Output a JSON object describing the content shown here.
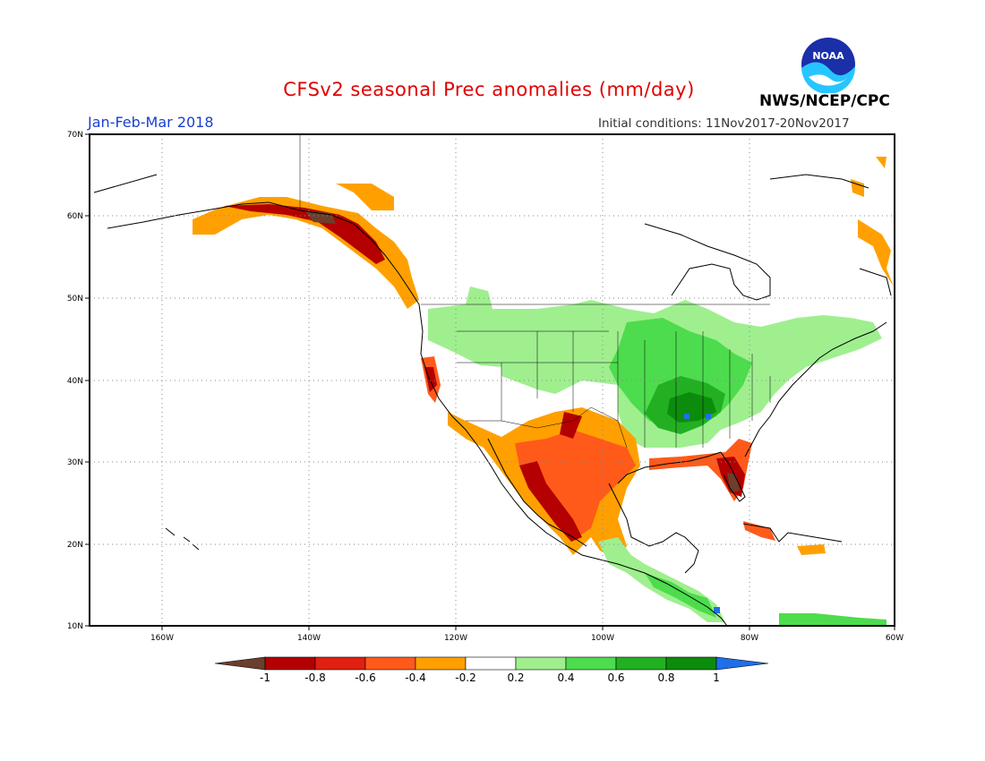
{
  "header": {
    "title": "CFSv2 seasonal Prec anomalies (mm/day)",
    "period": "Jan-Feb-Mar 2018",
    "initial_conditions": "Initial conditions: 11Nov2017-20Nov2017",
    "agency": "NWS/NCEP/CPC",
    "logo_text": "NOAA"
  },
  "map": {
    "region": "North America",
    "lon_range": [
      -172,
      -60
    ],
    "lat_range": [
      10,
      70
    ],
    "lat_labels": [
      "70N",
      "60N",
      "50N",
      "40N",
      "30N",
      "20N",
      "10N"
    ],
    "lon_labels": [
      "160W",
      "140W",
      "120W",
      "100W",
      "80W",
      "60W"
    ],
    "gridlines": "dotted"
  },
  "colorbar": {
    "levels": [
      "-1",
      "-0.8",
      "-0.6",
      "-0.4",
      "-0.2",
      "0.2",
      "0.4",
      "0.6",
      "0.8",
      "1"
    ],
    "colors": [
      "#6b3f2c",
      "#b40000",
      "#e02010",
      "#ff5a1a",
      "#ffa000",
      "#ffffff",
      "#9fef8f",
      "#4ddc4d",
      "#22b022",
      "#0c8c0c",
      "#1f6fe8"
    ]
  },
  "anomaly_regions": [
    {
      "name": "Pacific Northwest & Great Plains",
      "sign": "wet",
      "magnitude": "0.2 to 0.4"
    },
    {
      "name": "Ohio & Tennessee Valleys",
      "sign": "wet",
      "magnitude": "0.6 to 1"
    },
    {
      "name": "Southwest US & Mexico",
      "sign": "dry",
      "magnitude": "-0.2 to -1"
    },
    {
      "name": "Florida & Gulf Coast",
      "sign": "dry",
      "magnitude": "-0.4 to -1"
    },
    {
      "name": "Southern Alaska & BC coast",
      "sign": "dry",
      "magnitude": "-0.2 to -1"
    },
    {
      "name": "Central America",
      "sign": "wet",
      "magnitude": "0.2 to 1"
    }
  ]
}
